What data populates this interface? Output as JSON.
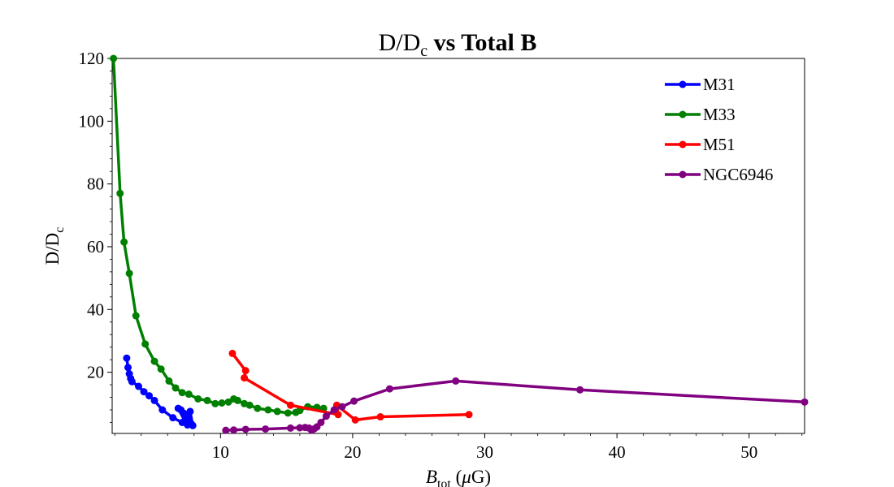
{
  "chart_data": {
    "type": "line",
    "title": {
      "main": "D/D",
      "sub": "c",
      "rest": " vs Total B"
    },
    "xlabel": {
      "main": "B",
      "sub": "tot",
      "rest": " (",
      "mu": "μ",
      "end": "G)"
    },
    "ylabel": {
      "main": "D/D",
      "sub": "c"
    },
    "xlim": [
      1.8,
      54.2
    ],
    "ylim": [
      0.5,
      120
    ],
    "xticks": [
      10,
      20,
      30,
      40,
      50
    ],
    "yticks": [
      20,
      40,
      60,
      80,
      100,
      120
    ],
    "grid": false,
    "legend_position": "upper-right",
    "series": [
      {
        "name": "M31",
        "color": "#0000ff",
        "points": [
          [
            2.9,
            24.5
          ],
          [
            3.0,
            21.5
          ],
          [
            3.1,
            19.5
          ],
          [
            3.2,
            18.0
          ],
          [
            3.3,
            17.0
          ],
          [
            3.8,
            15.5
          ],
          [
            4.2,
            13.8
          ],
          [
            4.6,
            12.5
          ],
          [
            5.0,
            11.0
          ],
          [
            5.6,
            8.0
          ],
          [
            6.4,
            5.5
          ],
          [
            7.1,
            4.0
          ],
          [
            7.5,
            3.2
          ],
          [
            7.8,
            3.5
          ],
          [
            7.6,
            5.0
          ],
          [
            7.4,
            6.5
          ],
          [
            7.2,
            7.0
          ],
          [
            7.0,
            8.0
          ],
          [
            6.8,
            8.5
          ],
          [
            7.3,
            4.5
          ],
          [
            7.7,
            7.5
          ],
          [
            7.9,
            3.0
          ]
        ]
      },
      {
        "name": "M33",
        "color": "#008000",
        "points": [
          [
            1.9,
            120
          ],
          [
            2.4,
            77
          ],
          [
            2.7,
            61.5
          ],
          [
            3.1,
            51.5
          ],
          [
            3.6,
            38
          ],
          [
            4.3,
            29
          ],
          [
            5.0,
            23.5
          ],
          [
            5.5,
            21
          ],
          [
            6.1,
            17.2
          ],
          [
            6.6,
            15
          ],
          [
            7.1,
            13.5
          ],
          [
            7.6,
            13
          ],
          [
            8.3,
            11.5
          ],
          [
            9.0,
            11
          ],
          [
            9.6,
            10
          ],
          [
            10.1,
            10.2
          ],
          [
            10.6,
            10.5
          ],
          [
            11.0,
            11.5
          ],
          [
            11.3,
            11
          ],
          [
            11.8,
            10
          ],
          [
            12.2,
            9.5
          ],
          [
            12.8,
            8.5
          ],
          [
            13.6,
            8
          ],
          [
            14.3,
            7.5
          ],
          [
            15.1,
            7
          ],
          [
            15.7,
            7.2
          ],
          [
            16.0,
            7.8
          ],
          [
            16.6,
            9
          ],
          [
            17.3,
            8.8
          ],
          [
            17.8,
            8.5
          ]
        ]
      },
      {
        "name": "M51",
        "color": "#ff0000",
        "points": [
          [
            10.9,
            26
          ],
          [
            11.9,
            20.5
          ],
          [
            11.8,
            18.2
          ],
          [
            15.3,
            9.5
          ],
          [
            18.9,
            6.5
          ],
          [
            18.8,
            9.5
          ],
          [
            20.2,
            4.8
          ],
          [
            22.1,
            5.8
          ],
          [
            28.8,
            6.5
          ]
        ]
      },
      {
        "name": "NGC6946",
        "color": "#800080",
        "points": [
          [
            10.4,
            1.5
          ],
          [
            11.0,
            1.6
          ],
          [
            11.9,
            1.8
          ],
          [
            13.4,
            1.9
          ],
          [
            15.3,
            2.2
          ],
          [
            16.0,
            2.3
          ],
          [
            16.4,
            2.4
          ],
          [
            16.7,
            2.2
          ],
          [
            16.9,
            1.5
          ],
          [
            17.1,
            2.0
          ],
          [
            17.3,
            2.6
          ],
          [
            17.6,
            4.0
          ],
          [
            18.0,
            6.0
          ],
          [
            18.6,
            8.0
          ],
          [
            19.2,
            9.0
          ],
          [
            20.1,
            10.8
          ],
          [
            22.8,
            14.7
          ],
          [
            27.8,
            17.2
          ],
          [
            37.2,
            14.4
          ],
          [
            54.2,
            10.5
          ]
        ]
      }
    ]
  }
}
